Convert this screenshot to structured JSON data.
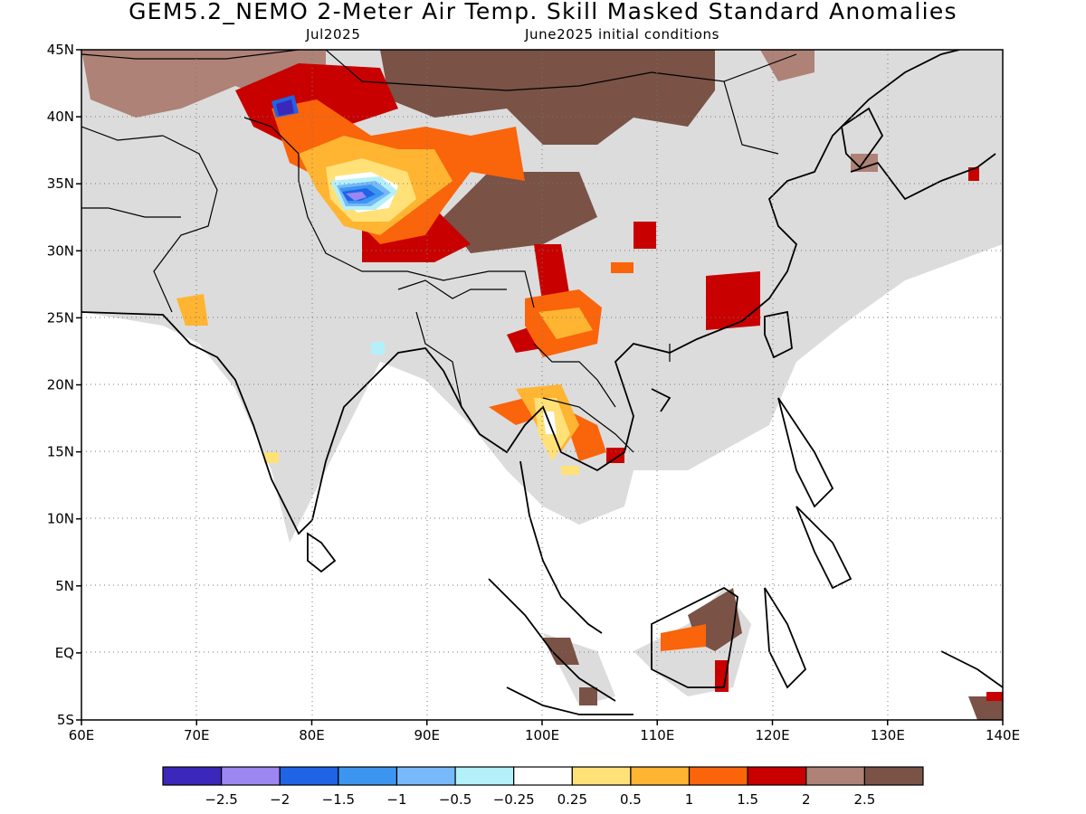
{
  "title": "GEM5.2_NEMO 2-Meter Air Temp. Skill Masked Standard Anomalies",
  "subtitle_left": "Jul2025",
  "subtitle_right": "June2025 initial conditions",
  "axes": {
    "lon_ticks": [
      "60E",
      "70E",
      "80E",
      "90E",
      "100E",
      "110E",
      "120E",
      "130E",
      "140E"
    ],
    "lat_ticks": [
      "45N",
      "40N",
      "35N",
      "30N",
      "25N",
      "20N",
      "15N",
      "10N",
      "5N",
      "EQ",
      "5S"
    ],
    "lon_range": [
      60,
      140
    ],
    "lat_range": [
      -5,
      45
    ],
    "grid": "dotted"
  },
  "colorbar": {
    "colors": [
      "#3b27ba",
      "#9b86f2",
      "#1f63e6",
      "#3c96f0",
      "#78b9fa",
      "#b4f0fa",
      "#ffffff",
      "#ffe178",
      "#ffb432",
      "#fa640a",
      "#c80000",
      "#ae8277",
      "#7a5246"
    ],
    "labels": [
      "-2.5",
      "-2",
      "-1.5",
      "-1",
      "-0.5",
      "-0.25",
      "0.25",
      "0.5",
      "1",
      "1.5",
      "2",
      "2.5"
    ]
  },
  "legend_colors": {
    "masked": "#dcdcdc",
    "coast": "#000000"
  }
}
